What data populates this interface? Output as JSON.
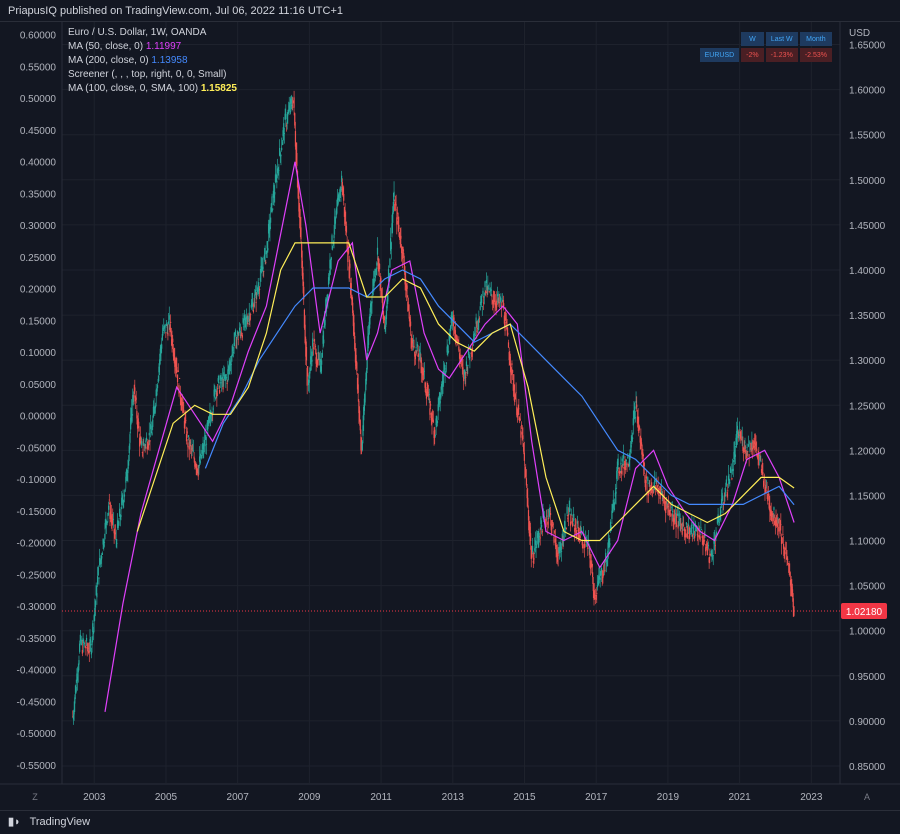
{
  "header": {
    "published": "PriapusIQ published on TradingView.com, Jul 06, 2022 11:16 UTC+1"
  },
  "legend": {
    "title": "Euro / U.S. Dollar, 1W, OANDA",
    "indicators": [
      {
        "label": "MA (50, close, 0)",
        "value": "1.11997",
        "color": "#e040fb"
      },
      {
        "label": "MA (200, close, 0)",
        "value": "1.13958",
        "color": "#448aff"
      },
      {
        "label": "Screener (, , , top, right, 0, 0, Small)",
        "value": "",
        "color": "#d1d4dc"
      },
      {
        "label": "MA (100, close, 0, SMA, 100)",
        "value": "1.15825",
        "color": "#ffee58"
      }
    ]
  },
  "screener": {
    "headers": [
      "W",
      "Last W",
      "Month"
    ],
    "symbol": "EURUSD",
    "values": [
      "-2%",
      "-1.23%",
      "-2.53%"
    ]
  },
  "footer": {
    "brand": "TradingView"
  },
  "colors": {
    "background": "#131722",
    "grid": "#1e222d",
    "up": "#26a69a",
    "down": "#ef5350",
    "ma50": "#e040fb",
    "ma200": "#448aff",
    "ma100": "#ffee58",
    "price_label": "#f23645"
  },
  "chart_data": {
    "type": "candlestick",
    "symbol": "EURUSD",
    "timeframe": "1W",
    "right_axis_unit": "USD",
    "left_axis": {
      "ticks": [
        "0.60000",
        "0.55000",
        "0.50000",
        "0.45000",
        "0.40000",
        "0.35000",
        "0.30000",
        "0.25000",
        "0.20000",
        "0.15000",
        "0.10000",
        "0.05000",
        "0.00000",
        "-0.05000",
        "-0.10000",
        "-0.15000",
        "-0.20000",
        "-0.25000",
        "-0.30000",
        "-0.35000",
        "-0.40000",
        "-0.45000",
        "-0.50000",
        "-0.55000"
      ],
      "range": [
        -0.58,
        0.62
      ]
    },
    "right_axis": {
      "ticks": [
        "1.65000",
        "1.60000",
        "1.55000",
        "1.50000",
        "1.45000",
        "1.40000",
        "1.35000",
        "1.30000",
        "1.25000",
        "1.20000",
        "1.15000",
        "1.10000",
        "1.05000",
        "1.00000",
        "0.95000",
        "0.90000",
        "0.85000"
      ],
      "range": [
        0.83,
        1.675
      ]
    },
    "x_axis": {
      "ticks": [
        "2003",
        "2005",
        "2007",
        "2009",
        "2011",
        "2013",
        "2015",
        "2017",
        "2019",
        "2021",
        "2023"
      ],
      "range": [
        2002.1,
        2023.8
      ]
    },
    "axis_corner_labels": [
      "Z",
      "A"
    ],
    "last_price": "1.02180",
    "price_path": [
      [
        2002.4,
        0.905
      ],
      [
        2002.6,
        0.985
      ],
      [
        2002.9,
        0.98
      ],
      [
        2003.1,
        1.06
      ],
      [
        2003.4,
        1.14
      ],
      [
        2003.6,
        1.1
      ],
      [
        2003.9,
        1.17
      ],
      [
        2004.1,
        1.27
      ],
      [
        2004.3,
        1.2
      ],
      [
        2004.6,
        1.22
      ],
      [
        2004.9,
        1.33
      ],
      [
        2005.1,
        1.34
      ],
      [
        2005.3,
        1.29
      ],
      [
        2005.6,
        1.21
      ],
      [
        2005.9,
        1.18
      ],
      [
        2006.1,
        1.21
      ],
      [
        2006.4,
        1.27
      ],
      [
        2006.7,
        1.28
      ],
      [
        2006.9,
        1.32
      ],
      [
        2007.2,
        1.34
      ],
      [
        2007.5,
        1.37
      ],
      [
        2007.8,
        1.42
      ],
      [
        2007.95,
        1.47
      ],
      [
        2008.3,
        1.56
      ],
      [
        2008.55,
        1.59
      ],
      [
        2008.75,
        1.44
      ],
      [
        2008.95,
        1.27
      ],
      [
        2009.1,
        1.32
      ],
      [
        2009.3,
        1.29
      ],
      [
        2009.6,
        1.42
      ],
      [
        2009.9,
        1.5
      ],
      [
        2010.2,
        1.36
      ],
      [
        2010.45,
        1.2
      ],
      [
        2010.7,
        1.36
      ],
      [
        2010.9,
        1.42
      ],
      [
        2011.1,
        1.33
      ],
      [
        2011.35,
        1.48
      ],
      [
        2011.6,
        1.42
      ],
      [
        2011.85,
        1.32
      ],
      [
        2012.1,
        1.3
      ],
      [
        2012.5,
        1.22
      ],
      [
        2012.8,
        1.3
      ],
      [
        2013.0,
        1.35
      ],
      [
        2013.3,
        1.28
      ],
      [
        2013.6,
        1.33
      ],
      [
        2013.9,
        1.38
      ],
      [
        2014.1,
        1.37
      ],
      [
        2014.4,
        1.36
      ],
      [
        2014.7,
        1.27
      ],
      [
        2014.95,
        1.21
      ],
      [
        2015.2,
        1.08
      ],
      [
        2015.5,
        1.12
      ],
      [
        2015.7,
        1.13
      ],
      [
        2015.95,
        1.08
      ],
      [
        2016.2,
        1.13
      ],
      [
        2016.5,
        1.11
      ],
      [
        2016.8,
        1.09
      ],
      [
        2016.95,
        1.04
      ],
      [
        2017.3,
        1.08
      ],
      [
        2017.6,
        1.18
      ],
      [
        2017.9,
        1.19
      ],
      [
        2018.1,
        1.25
      ],
      [
        2018.4,
        1.16
      ],
      [
        2018.7,
        1.16
      ],
      [
        2018.95,
        1.14
      ],
      [
        2019.3,
        1.12
      ],
      [
        2019.6,
        1.11
      ],
      [
        2019.9,
        1.11
      ],
      [
        2020.2,
        1.08
      ],
      [
        2020.5,
        1.14
      ],
      [
        2020.8,
        1.18
      ],
      [
        2020.95,
        1.22
      ],
      [
        2021.2,
        1.2
      ],
      [
        2021.4,
        1.21
      ],
      [
        2021.6,
        1.18
      ],
      [
        2021.9,
        1.13
      ],
      [
        2022.1,
        1.12
      ],
      [
        2022.3,
        1.08
      ],
      [
        2022.45,
        1.05
      ],
      [
        2022.52,
        1.0218
      ]
    ],
    "series": [
      {
        "name": "MA (50, close, 0)",
        "points": [
          [
            2003.3,
            0.91
          ],
          [
            2003.8,
            1.03
          ],
          [
            2004.3,
            1.13
          ],
          [
            2004.8,
            1.2
          ],
          [
            2005.3,
            1.27
          ],
          [
            2005.8,
            1.24
          ],
          [
            2006.3,
            1.21
          ],
          [
            2006.8,
            1.25
          ],
          [
            2007.3,
            1.31
          ],
          [
            2007.8,
            1.36
          ],
          [
            2008.2,
            1.44
          ],
          [
            2008.6,
            1.52
          ],
          [
            2008.9,
            1.45
          ],
          [
            2009.3,
            1.33
          ],
          [
            2009.8,
            1.41
          ],
          [
            2010.2,
            1.43
          ],
          [
            2010.6,
            1.3
          ],
          [
            2010.9,
            1.33
          ],
          [
            2011.3,
            1.4
          ],
          [
            2011.8,
            1.41
          ],
          [
            2012.2,
            1.33
          ],
          [
            2012.6,
            1.29
          ],
          [
            2012.9,
            1.28
          ],
          [
            2013.4,
            1.31
          ],
          [
            2013.9,
            1.34
          ],
          [
            2014.4,
            1.36
          ],
          [
            2014.8,
            1.34
          ],
          [
            2015.2,
            1.21
          ],
          [
            2015.6,
            1.11
          ],
          [
            2016.1,
            1.1
          ],
          [
            2016.6,
            1.11
          ],
          [
            2017.1,
            1.07
          ],
          [
            2017.6,
            1.1
          ],
          [
            2018.1,
            1.18
          ],
          [
            2018.6,
            1.2
          ],
          [
            2019.0,
            1.16
          ],
          [
            2019.5,
            1.13
          ],
          [
            2019.9,
            1.11
          ],
          [
            2020.3,
            1.1
          ],
          [
            2020.8,
            1.14
          ],
          [
            2021.2,
            1.19
          ],
          [
            2021.7,
            1.2
          ],
          [
            2022.1,
            1.17
          ],
          [
            2022.52,
            1.11997
          ]
        ]
      },
      {
        "name": "MA (200, close, 0)",
        "points": [
          [
            2006.1,
            1.18
          ],
          [
            2006.6,
            1.23
          ],
          [
            2007.1,
            1.26
          ],
          [
            2007.6,
            1.3
          ],
          [
            2008.1,
            1.33
          ],
          [
            2008.6,
            1.36
          ],
          [
            2009.1,
            1.38
          ],
          [
            2009.6,
            1.38
          ],
          [
            2010.1,
            1.38
          ],
          [
            2010.6,
            1.37
          ],
          [
            2011.1,
            1.39
          ],
          [
            2011.6,
            1.4
          ],
          [
            2012.1,
            1.39
          ],
          [
            2012.6,
            1.36
          ],
          [
            2013.1,
            1.34
          ],
          [
            2013.6,
            1.32
          ],
          [
            2014.1,
            1.33
          ],
          [
            2014.6,
            1.34
          ],
          [
            2015.1,
            1.32
          ],
          [
            2015.6,
            1.3
          ],
          [
            2016.1,
            1.28
          ],
          [
            2016.6,
            1.26
          ],
          [
            2017.1,
            1.23
          ],
          [
            2017.6,
            1.2
          ],
          [
            2018.1,
            1.19
          ],
          [
            2018.6,
            1.17
          ],
          [
            2019.1,
            1.15
          ],
          [
            2019.6,
            1.14
          ],
          [
            2020.1,
            1.14
          ],
          [
            2020.6,
            1.14
          ],
          [
            2021.1,
            1.14
          ],
          [
            2021.6,
            1.15
          ],
          [
            2022.1,
            1.16
          ],
          [
            2022.52,
            1.13958
          ]
        ]
      },
      {
        "name": "MA (100, close, 0, SMA, 100)",
        "points": [
          [
            2004.2,
            1.11
          ],
          [
            2004.7,
            1.17
          ],
          [
            2005.2,
            1.23
          ],
          [
            2005.8,
            1.25
          ],
          [
            2006.3,
            1.24
          ],
          [
            2006.8,
            1.24
          ],
          [
            2007.3,
            1.27
          ],
          [
            2007.8,
            1.33
          ],
          [
            2008.2,
            1.4
          ],
          [
            2008.6,
            1.43
          ],
          [
            2009.1,
            1.43
          ],
          [
            2009.6,
            1.43
          ],
          [
            2010.1,
            1.43
          ],
          [
            2010.6,
            1.37
          ],
          [
            2011.1,
            1.37
          ],
          [
            2011.6,
            1.39
          ],
          [
            2012.1,
            1.38
          ],
          [
            2012.6,
            1.34
          ],
          [
            2013.1,
            1.32
          ],
          [
            2013.6,
            1.31
          ],
          [
            2014.1,
            1.33
          ],
          [
            2014.6,
            1.34
          ],
          [
            2015.1,
            1.27
          ],
          [
            2015.6,
            1.17
          ],
          [
            2016.1,
            1.11
          ],
          [
            2016.6,
            1.1
          ],
          [
            2017.1,
            1.1
          ],
          [
            2017.6,
            1.12
          ],
          [
            2018.1,
            1.14
          ],
          [
            2018.6,
            1.16
          ],
          [
            2019.1,
            1.14
          ],
          [
            2019.6,
            1.13
          ],
          [
            2020.1,
            1.12
          ],
          [
            2020.6,
            1.13
          ],
          [
            2021.1,
            1.15
          ],
          [
            2021.6,
            1.17
          ],
          [
            2022.1,
            1.17
          ],
          [
            2022.52,
            1.15825
          ]
        ]
      }
    ]
  }
}
